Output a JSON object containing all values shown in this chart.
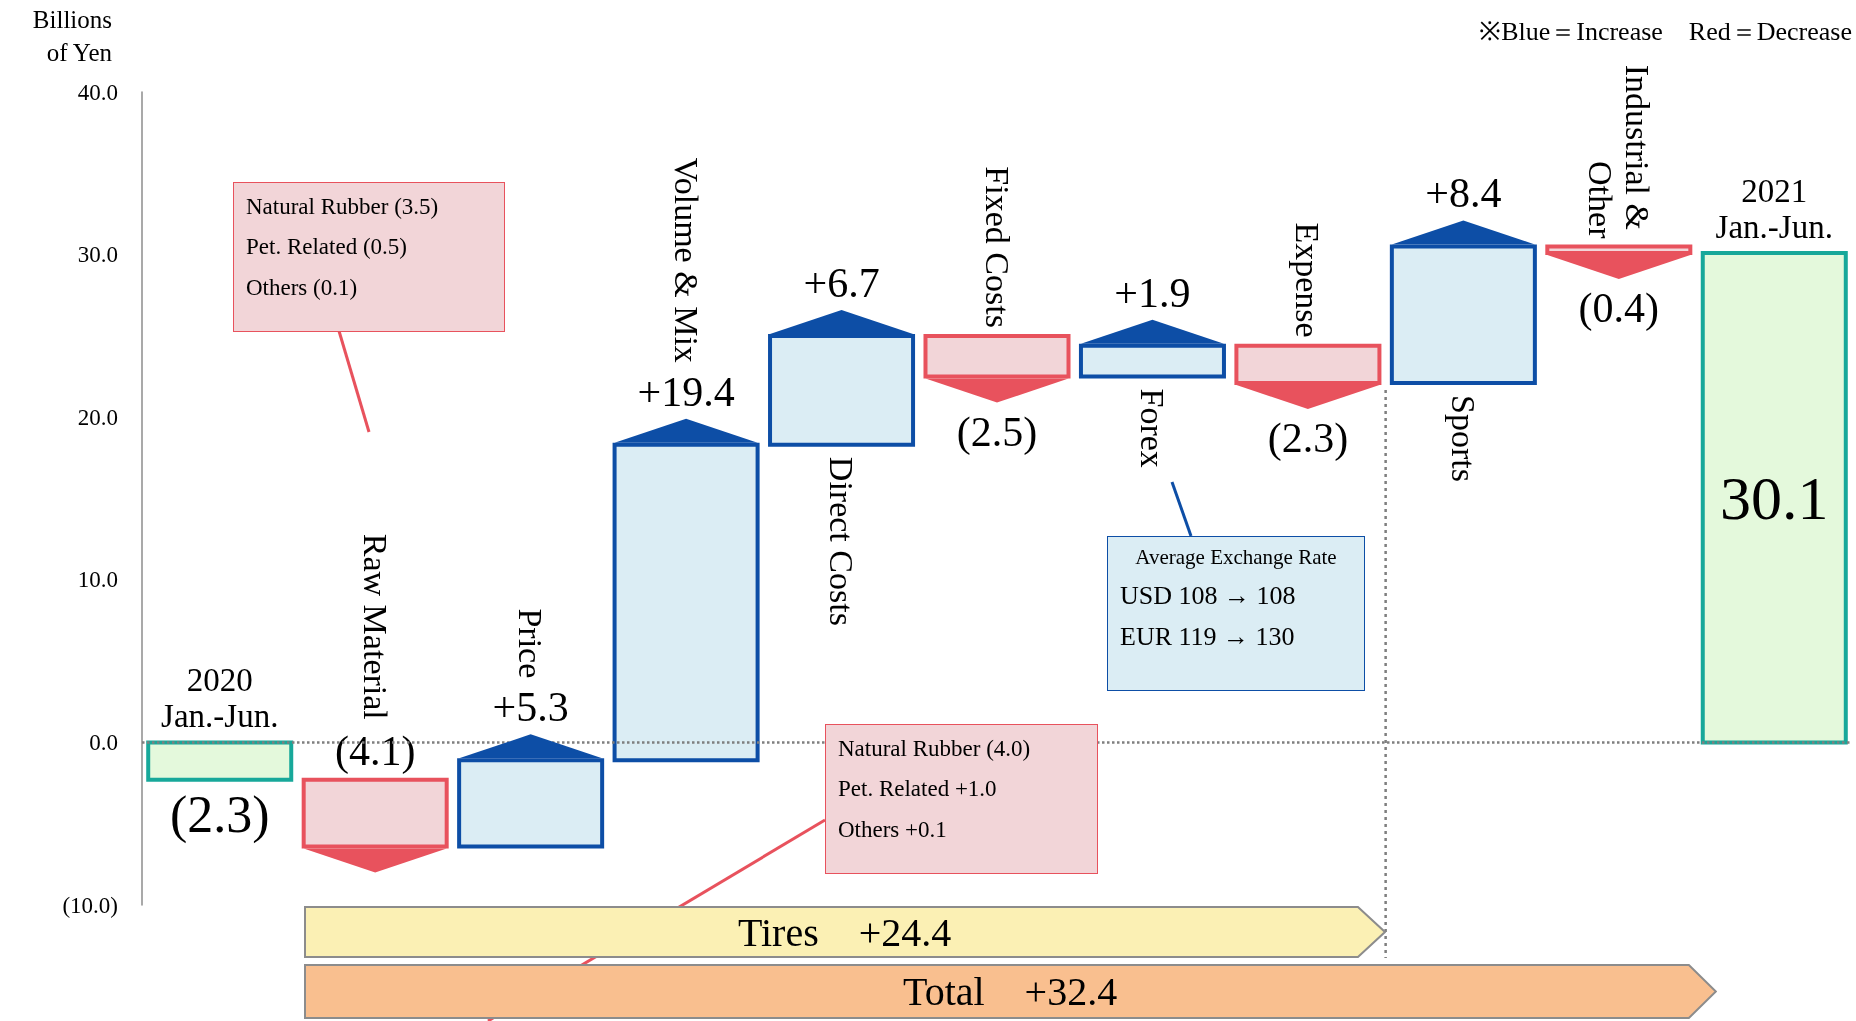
{
  "chart_data": {
    "type": "bar",
    "ylabel": "Billions of Yen",
    "categories": [
      "2020\nJan.-Jun.",
      "Raw Material",
      "Price",
      "Volume & Mix",
      "Direct Costs",
      "Fixed Costs",
      "Forex",
      "Expense",
      "Sports",
      "Industrial & Other",
      "2021\nJan.-Jun."
    ],
    "values": [
      -2.3,
      -4.1,
      5.3,
      19.4,
      6.7,
      -2.5,
      1.9,
      -2.3,
      8.4,
      -0.4,
      30.1
    ],
    "base": [
      0,
      -2.3,
      -6.4,
      -1.1,
      18.3,
      25.0,
      22.5,
      24.4,
      22.1,
      30.5,
      0
    ],
    "value_labels": [
      "(2.3)",
      "(4.1)",
      "+5.3",
      "+19.4",
      "+6.7",
      "(2.5)",
      "+1.9",
      "(2.3)",
      "+8.4",
      "(0.4)",
      "30.1"
    ],
    "colors": [
      "#e4f9dc",
      "#f2d5d8",
      "#dbedf4",
      "#dbedf4",
      "#dbedf4",
      "#f2d5d8",
      "#dbedf4",
      "#f2d5d8",
      "#dbedf4",
      "#f2d5d8",
      "#e4f9dc"
    ],
    "ylim": [
      -10,
      40
    ],
    "yticks": [
      {
        "value": -10,
        "label": "(10.0)"
      },
      {
        "value": 0,
        "label": "0.0"
      },
      {
        "value": 10,
        "label": "10.0"
      },
      {
        "value": 20,
        "label": "20.0"
      },
      {
        "value": 30,
        "label": "30.0"
      },
      {
        "value": 40,
        "label": "40.0"
      }
    ],
    "grid": false,
    "ref_lines": [
      {
        "axis": "y",
        "value": 0,
        "line_style": "dotted",
        "color": "#7f7f7f"
      }
    ],
    "annotations": [
      "※Blue＝Increase　Red＝Decrease",
      "Natural Rubber (3.5)\nPet. Related (0.5)\nOthers (0.1)",
      "Natural Rubber (4.0)\nPet. Related +1.0\nOthers +0.1",
      "Average Exchange Rate\nUSD 108 → 108\nEUR 119 → 130",
      "Tires +24.4",
      "Total +32.4"
    ]
  }
}
